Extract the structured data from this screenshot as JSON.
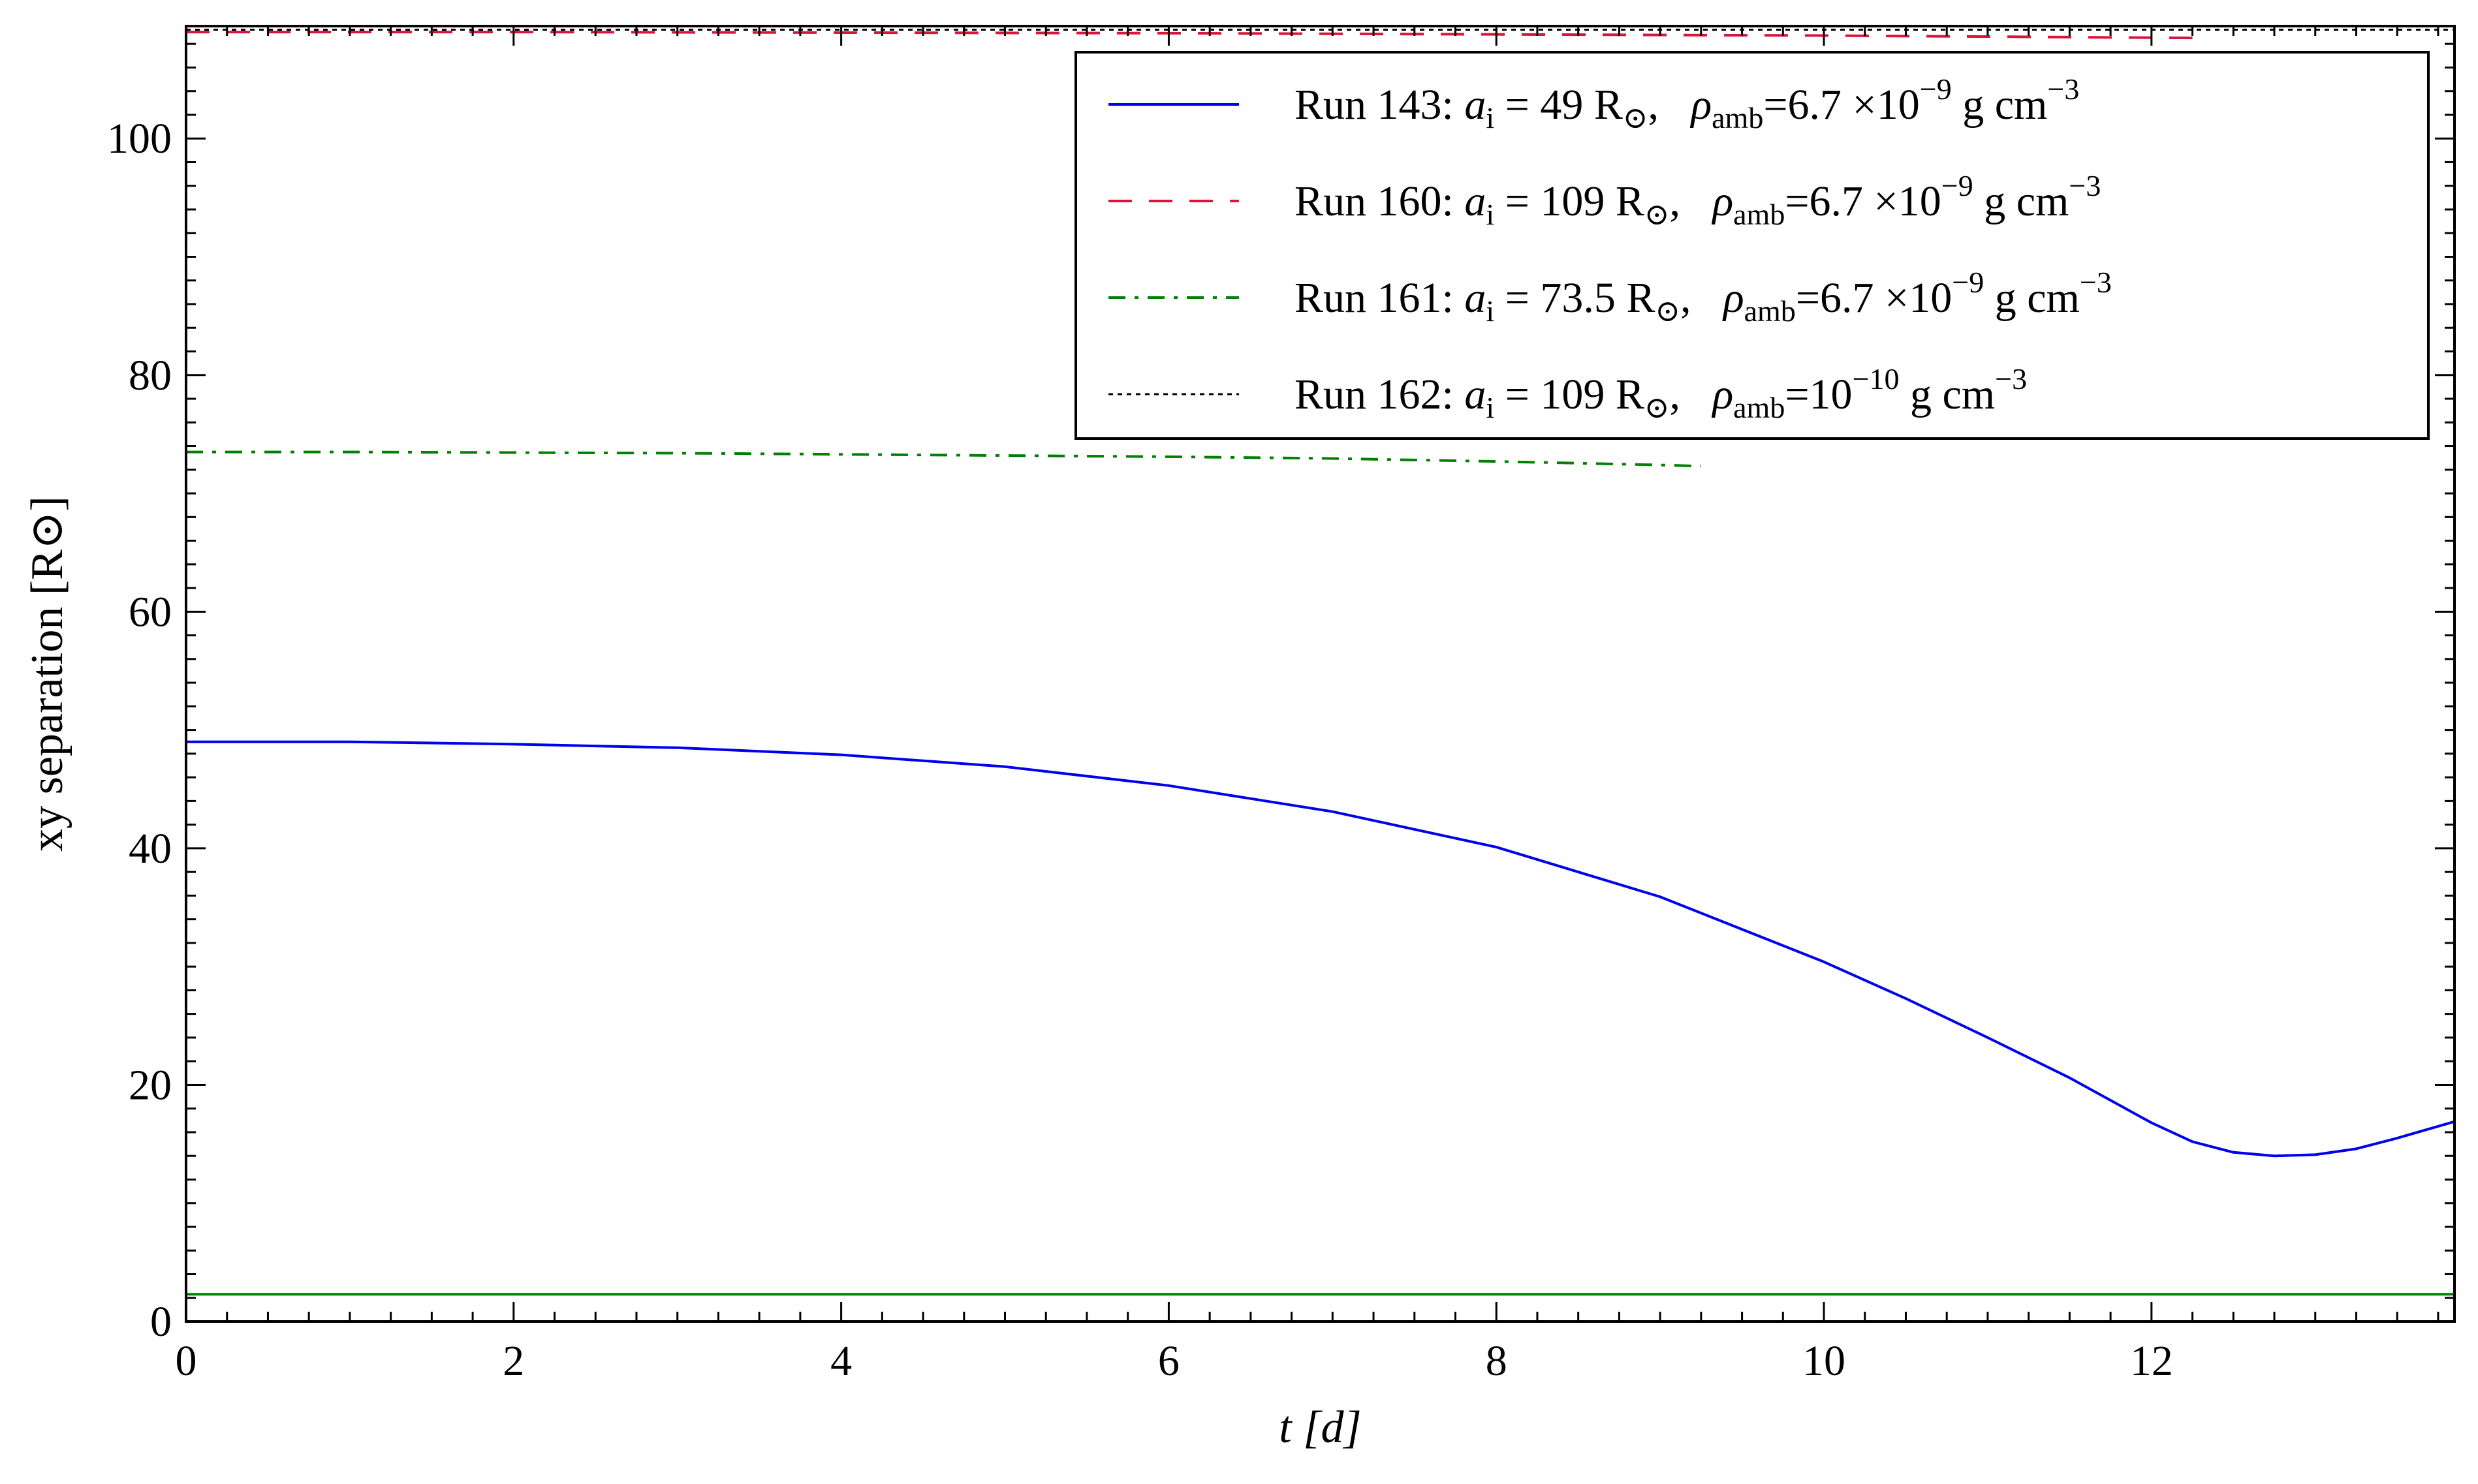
{
  "chart_data": {
    "type": "line",
    "xlabel": "t  [d]",
    "ylabel": "xy  separation  [R⊙]",
    "xlim": [
      0,
      13.85
    ],
    "ylim": [
      0,
      109.5
    ],
    "x_ticks": [
      0,
      2,
      4,
      6,
      8,
      10,
      12
    ],
    "y_ticks": [
      0,
      20,
      40,
      60,
      80,
      100
    ],
    "grid": false,
    "legend_placement": "top-right",
    "series": [
      {
        "name": "Run 143: a_i = 49 R⊙, ρ_amb = 6.7×10⁻⁹ g cm⁻³",
        "legend": {
          "prefix": "Run 143: ",
          "a_value": " =  49 R",
          "rho_value": "=6.7 ×10",
          "rho_exp": "−9",
          "unit": " g cm",
          "unit_exp": "−3"
        },
        "color": "#0000ee",
        "style": "solid",
        "x": [
          0,
          1,
          2,
          3,
          4,
          5,
          6,
          7,
          8,
          9,
          10,
          10.5,
          11,
          11.5,
          12,
          12.25,
          12.5,
          12.75,
          13,
          13.25,
          13.5,
          13.85
        ],
        "y": [
          49,
          49,
          48.8,
          48.5,
          47.9,
          46.9,
          45.3,
          43.1,
          40.1,
          35.9,
          30.4,
          27.3,
          24.0,
          20.6,
          16.8,
          15.2,
          14.3,
          14.0,
          14.1,
          14.6,
          15.5,
          16.9
        ]
      },
      {
        "name": "Run 160: a_i = 109 R⊙, ρ_amb = 6.7×10⁻⁹ g cm⁻³",
        "legend": {
          "prefix": "Run 160: ",
          "a_value": " =  109 R",
          "rho_value": "=6.7 ×10",
          "rho_exp": "−9",
          "unit": " g cm",
          "unit_exp": "−3"
        },
        "color": "#dc143c",
        "style": "dashed",
        "x": [
          0,
          2,
          4,
          6,
          8,
          10,
          12.25
        ],
        "y": [
          109,
          109,
          108.95,
          108.9,
          108.8,
          108.7,
          108.5
        ]
      },
      {
        "name": "Run 161: a_i = 73.5 R⊙, ρ_amb = 6.7×10⁻⁹ g cm⁻³",
        "legend": {
          "prefix": "Run 161: ",
          "a_value": " =  73.5 R",
          "rho_value": "=6.7 ×10",
          "rho_exp": "−9",
          "unit": " g cm",
          "unit_exp": "−3"
        },
        "color": "#008000",
        "style": "dashdot",
        "x": [
          0,
          1,
          2,
          3,
          4,
          5,
          6,
          7,
          8,
          9,
          9.25
        ],
        "y": [
          73.5,
          73.5,
          73.45,
          73.4,
          73.3,
          73.2,
          73.1,
          72.95,
          72.7,
          72.4,
          72.3
        ]
      },
      {
        "name": "Run 162: a_i = 109 R⊙, ρ_amb = 10⁻¹⁰ g cm⁻³",
        "legend": {
          "prefix": "Run 162: ",
          "a_value": " =  109 R",
          "rho_value": "=10",
          "rho_exp": "−10",
          "unit": " g cm",
          "unit_exp": "−3"
        },
        "color": "#000000",
        "style": "dotted",
        "x": [
          0,
          2,
          4,
          6,
          8,
          10,
          12,
          13.85
        ],
        "y": [
          109.2,
          109.2,
          109.2,
          109.2,
          109.2,
          109.2,
          109.2,
          109.2
        ]
      }
    ],
    "reference_lines": [
      {
        "color": "#008000",
        "style": "solid",
        "x": [
          0,
          13.85
        ],
        "y": [
          2.3,
          2.3
        ]
      }
    ],
    "symbols": {
      "a": "a",
      "a_sub": "i",
      "rho": "ρ",
      "rho_sub": "amb",
      "sun_sub": "⊙"
    }
  }
}
